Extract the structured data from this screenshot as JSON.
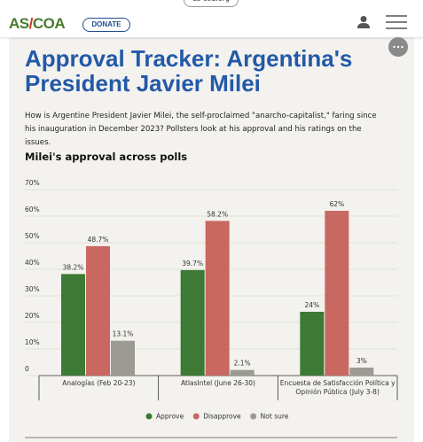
{
  "header": {
    "url": "as-coa.org",
    "logo": {
      "left": "AS",
      "slash": "/",
      "right": "COA"
    },
    "donate": "DONATE"
  },
  "article": {
    "title": "Approval Tracker: Argentina's President Javier Milei",
    "intro": "How is Argentine President Javier Milei, the self-proclaimed \"anarcho-capitalist,\" faring since his inauguration in December 2023? Pollsters look at his approval and his ratings on the issues."
  },
  "chart_data": {
    "type": "bar",
    "title": "Milei's approval across polls",
    "categories": [
      "Analogías (Feb 20-23)",
      "AtlasIntel (June 26-30)",
      "Encuesta de Satisfacción Política y Opinión Pública (July 3-8)"
    ],
    "series": [
      {
        "name": "Approve",
        "color": "#3d7a35",
        "values": [
          38.2,
          39.7,
          24
        ],
        "value_labels": [
          "38.2%",
          "39.7%",
          "24%"
        ]
      },
      {
        "name": "Disapprove",
        "color": "#c96860",
        "values": [
          48.7,
          58.2,
          62
        ],
        "value_labels": [
          "48.7%",
          "58.2%",
          "62%"
        ]
      },
      {
        "name": "Not sure",
        "color": "#9b9b93",
        "values": [
          13.1,
          2.1,
          3
        ],
        "value_labels": [
          "13.1%",
          "2.1%",
          "3%"
        ]
      }
    ],
    "ylim": [
      0,
      70
    ],
    "yticks": [
      0,
      {
        "value": 10,
        "label": "10%"
      },
      {
        "value": 20,
        "label": "20%"
      },
      {
        "value": 30,
        "label": "30%"
      },
      {
        "value": 40,
        "label": "40%"
      },
      {
        "value": 50,
        "label": "50%"
      },
      {
        "value": 60,
        "label": "60%"
      },
      {
        "value": 70,
        "label": "70%"
      }
    ],
    "grid": true,
    "legend": "bottom"
  }
}
